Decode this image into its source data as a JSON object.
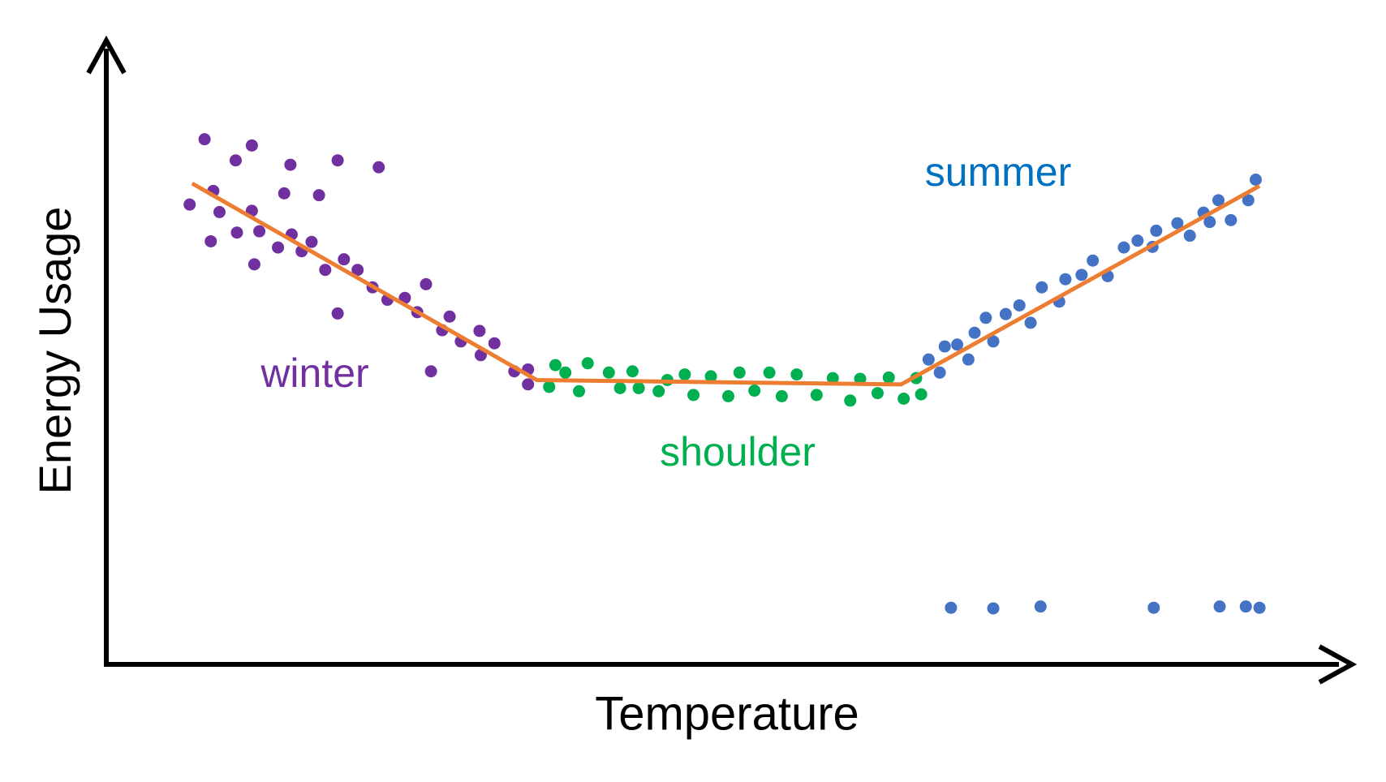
{
  "chart_data": {
    "type": "scatter",
    "x_label": "Temperature",
    "y_label": "Energy Usage",
    "xlim": [
      0,
      100
    ],
    "ylim": [
      0,
      100
    ],
    "series": [
      {
        "name": "winter",
        "color": "#7030a0",
        "label_color": "#7030a0",
        "x": [
          6.7,
          7.9,
          8.6,
          8.4,
          9.1,
          10.4,
          10.5,
          11.7,
          11.7,
          11.9,
          12.3,
          13.8,
          14.3,
          14.8,
          14.9,
          15.7,
          16.5,
          17.1,
          17.6,
          18.6,
          18.6,
          19.1,
          20.2,
          21.4,
          21.9,
          22.6,
          24.0,
          25.0,
          25.7,
          26.1,
          27.0,
          27.6,
          28.5,
          30.0,
          30.1,
          31.2,
          32.8,
          33.9,
          33.9
        ],
        "y": [
          73.9,
          84.4,
          76.1,
          68.0,
          72.7,
          81.0,
          69.4,
          83.4,
          72.9,
          64.3,
          69.6,
          67.0,
          75.7,
          80.3,
          69.1,
          66.4,
          67.9,
          75.4,
          63.4,
          81.0,
          56.4,
          65.1,
          63.4,
          60.6,
          79.9,
          58.6,
          58.9,
          56.6,
          61.1,
          47.1,
          53.7,
          55.9,
          51.9,
          53.6,
          49.7,
          51.6,
          47.1,
          47.4,
          45.0
        ]
      },
      {
        "name": "shoulder",
        "color": "#00b050",
        "label_color": "#00b050",
        "x": [
          35.6,
          36.1,
          36.9,
          38.0,
          38.7,
          40.4,
          41.3,
          42.3,
          42.8,
          44.4,
          45.1,
          46.5,
          47.2,
          48.6,
          50.0,
          50.9,
          52.1,
          53.3,
          54.3,
          55.5,
          57.1,
          58.4,
          59.8,
          60.6,
          62.0,
          62.9,
          64.1,
          65.1,
          65.5
        ],
        "y": [
          44.6,
          48.1,
          46.9,
          43.9,
          48.4,
          46.9,
          44.4,
          47.1,
          44.4,
          43.9,
          45.7,
          46.6,
          43.3,
          46.3,
          43.1,
          46.9,
          44.0,
          46.9,
          43.1,
          46.6,
          43.3,
          46.0,
          42.4,
          45.9,
          43.6,
          46.1,
          42.7,
          46.0,
          43.4
        ]
      },
      {
        "name": "summer",
        "color": "#4472c4",
        "label_color": "#0070c0",
        "x": [
          66.1,
          67.0,
          67.4,
          68.4,
          69.3,
          69.8,
          70.7,
          71.3,
          72.3,
          73.4,
          74.3,
          75.2,
          76.6,
          77.1,
          78.4,
          79.3,
          80.5,
          81.8,
          82.9,
          84.1,
          84.4,
          86.1,
          87.1,
          88.2,
          88.7,
          89.4,
          90.4,
          91.8,
          92.4,
          67.9,
          71.3,
          75.1,
          84.2,
          89.5,
          91.6,
          92.7
        ],
        "y": [
          49.0,
          46.9,
          51.1,
          51.4,
          49.0,
          53.3,
          55.7,
          51.9,
          56.3,
          57.7,
          54.9,
          60.6,
          58.3,
          61.9,
          62.6,
          64.9,
          62.4,
          67.0,
          68.1,
          67.1,
          69.7,
          70.9,
          68.9,
          72.6,
          71.1,
          74.6,
          71.4,
          74.6,
          77.9,
          9.1,
          9.0,
          9.3,
          9.1,
          9.3,
          9.3,
          9.1
        ]
      },
      {
        "type": "line",
        "color": "#ed7d31",
        "x": [
          6.9,
          34.6,
          63.9,
          92.7
        ],
        "y": [
          77.3,
          45.7,
          45.0,
          76.9
        ]
      }
    ]
  }
}
